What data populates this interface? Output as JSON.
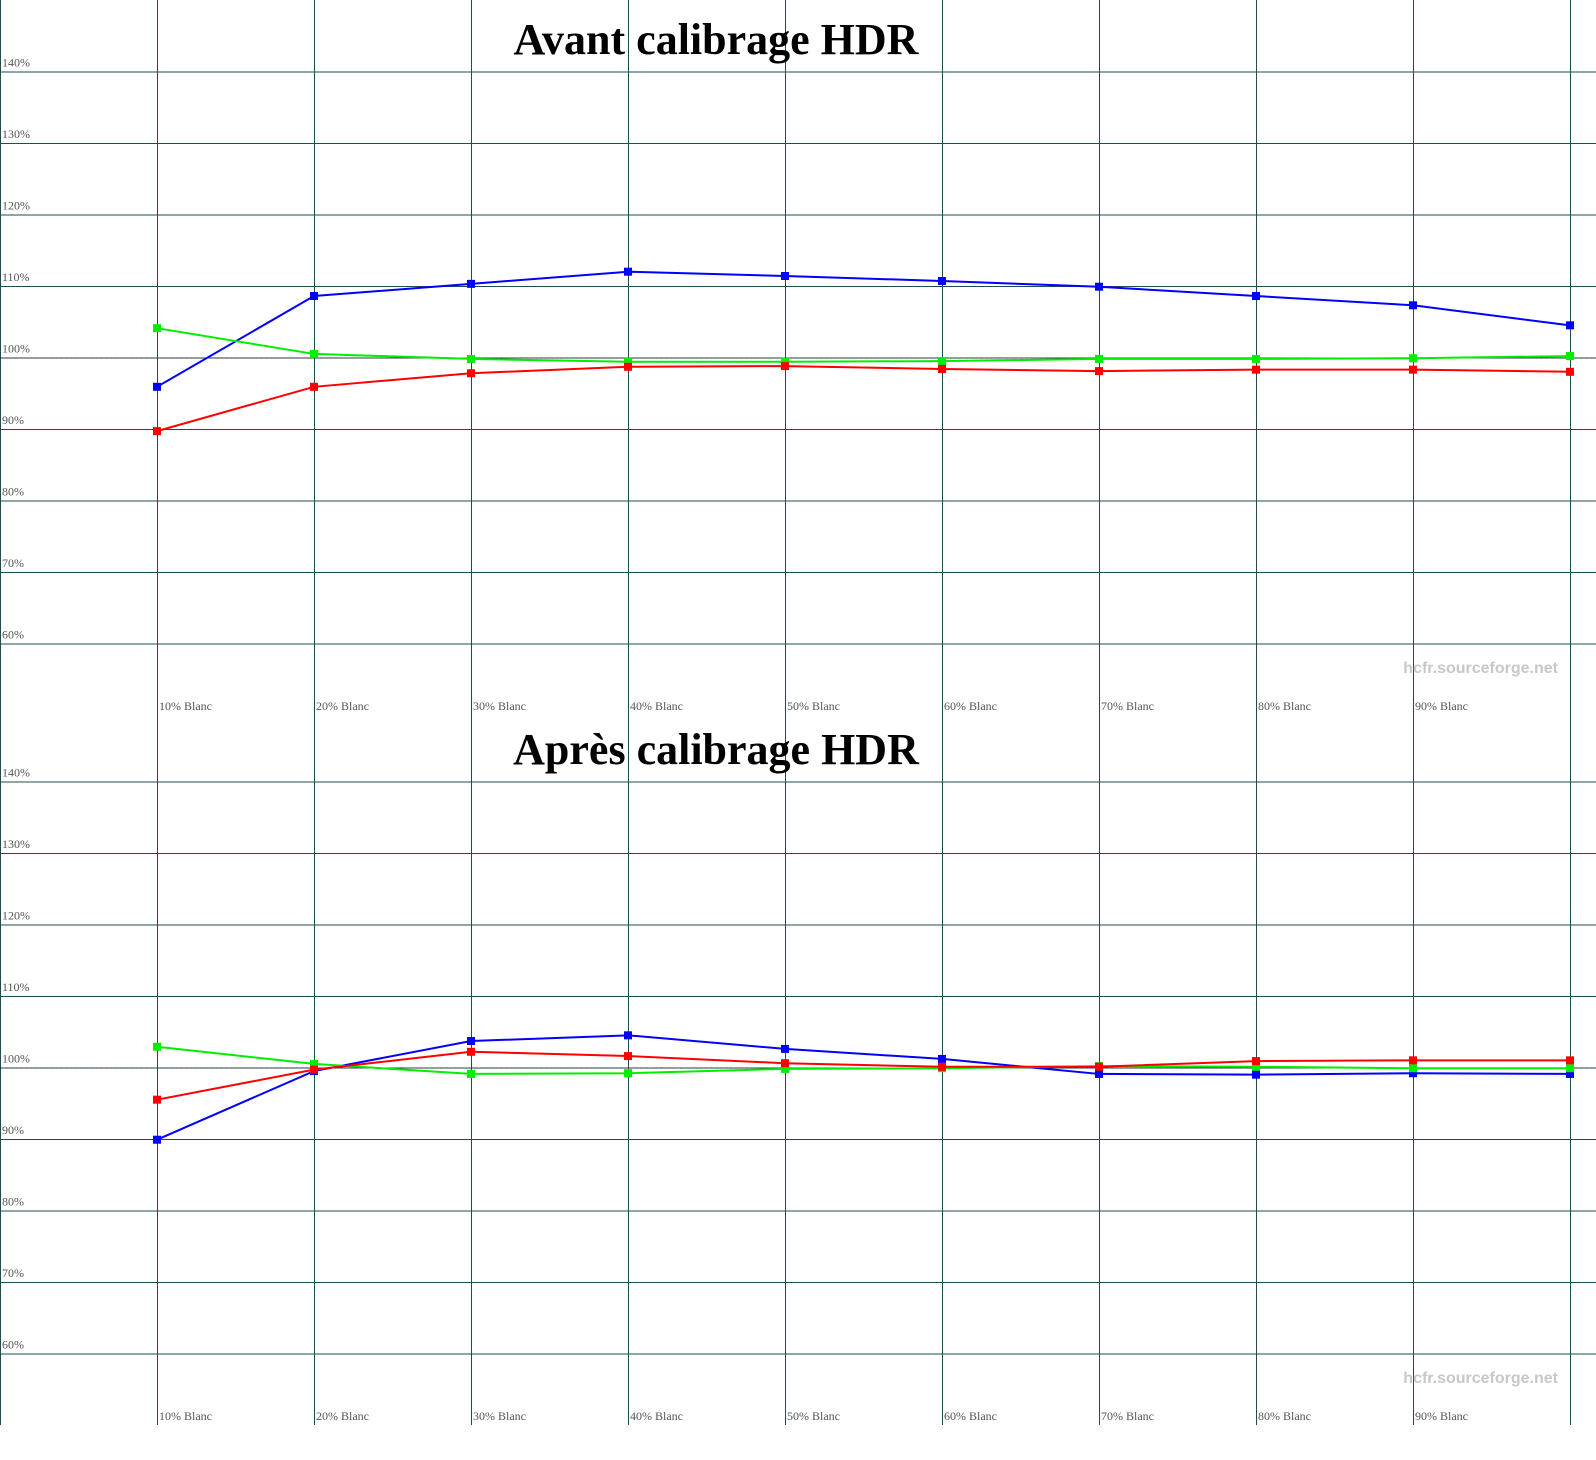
{
  "chart_data": [
    {
      "type": "line",
      "title": "Avant calibrage HDR",
      "watermark": "hcfr.sourceforge.net",
      "categories": [
        "10% Blanc",
        "20% Blanc",
        "30% Blanc",
        "40% Blanc",
        "50% Blanc",
        "60% Blanc",
        "70% Blanc",
        "80% Blanc",
        "90% Blanc",
        null
      ],
      "series": [
        {
          "color": "#0000ff",
          "values": [
            95.9,
            108.6,
            110.3,
            112.0,
            111.4,
            110.7,
            109.9,
            108.6,
            107.3,
            104.5
          ]
        },
        {
          "color": "#00ee00",
          "values": [
            104.1,
            100.5,
            99.8,
            99.4,
            99.4,
            99.5,
            99.8,
            99.8,
            99.9,
            100.2
          ]
        },
        {
          "color": "#ff0000",
          "values": [
            89.7,
            95.9,
            97.8,
            98.7,
            98.8,
            98.4,
            98.1,
            98.3,
            98.3,
            98.0
          ]
        }
      ],
      "ylim": [
        50,
        150
      ],
      "yticks": [
        {
          "value": 60,
          "label": "60%"
        },
        {
          "value": 70,
          "label": "70%"
        },
        {
          "value": 80,
          "label": "80%"
        },
        {
          "value": 90,
          "label": "90%"
        },
        {
          "value": 100,
          "label": "100%"
        },
        {
          "value": 110,
          "label": "110%"
        },
        {
          "value": 120,
          "label": "120%"
        },
        {
          "value": 130,
          "label": "130%"
        },
        {
          "value": 140,
          "label": "140%"
        }
      ],
      "reference_line": 100,
      "grid": true
    },
    {
      "type": "line",
      "title": "Après calibrage HDR",
      "watermark": "hcfr.sourceforge.net",
      "categories": [
        "10% Blanc",
        "20% Blanc",
        "30% Blanc",
        "40% Blanc",
        "50% Blanc",
        "60% Blanc",
        "70% Blanc",
        "80% Blanc",
        "90% Blanc",
        null
      ],
      "series": [
        {
          "color": "#0000ff",
          "values": [
            89.9,
            99.5,
            103.7,
            104.5,
            102.6,
            101.2,
            99.1,
            99.0,
            99.2,
            99.1
          ]
        },
        {
          "color": "#00ee00",
          "values": [
            102.9,
            100.5,
            99.1,
            99.2,
            99.8,
            99.9,
            100.2,
            100.1,
            99.9,
            99.9
          ]
        },
        {
          "color": "#ff0000",
          "values": [
            95.5,
            99.7,
            102.2,
            101.6,
            100.6,
            100.1,
            100.1,
            100.9,
            101.0,
            101.0
          ]
        }
      ],
      "ylim": [
        50,
        150
      ],
      "yticks": [
        {
          "value": 60,
          "label": "60%"
        },
        {
          "value": 70,
          "label": "70%"
        },
        {
          "value": 80,
          "label": "80%"
        },
        {
          "value": 90,
          "label": "90%"
        },
        {
          "value": 100,
          "label": "100%"
        },
        {
          "value": 110,
          "label": "110%"
        },
        {
          "value": 120,
          "label": "120%"
        },
        {
          "value": 130,
          "label": "130%"
        },
        {
          "value": 140,
          "label": "140%"
        }
      ],
      "reference_line": 100,
      "grid": true
    }
  ]
}
